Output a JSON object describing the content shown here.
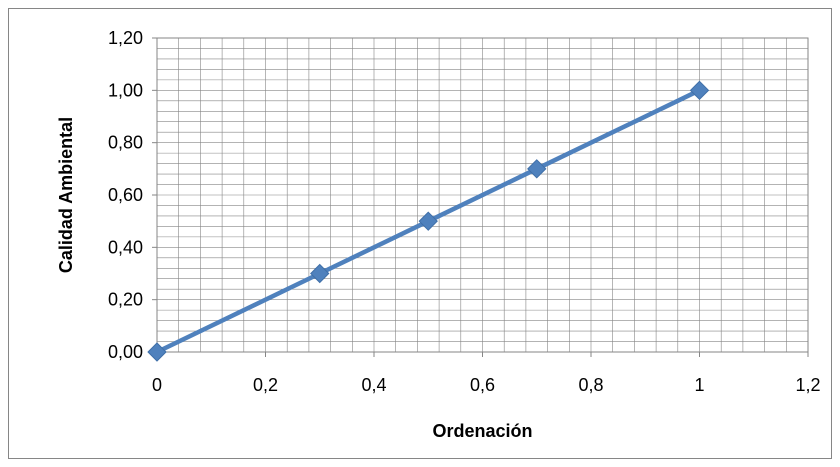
{
  "chart_data": {
    "type": "scatter",
    "mode": "lines+markers",
    "xlabel": "Ordenación",
    "ylabel": "Calidad Ambiental",
    "xlim": [
      0,
      1.2
    ],
    "ylim": [
      0,
      1.2
    ],
    "x_ticks": [
      "0",
      "0,2",
      "0,4",
      "0,6",
      "0,8",
      "1",
      "1,2"
    ],
    "y_ticks": [
      "0,00",
      "0,20",
      "0,40",
      "0,60",
      "0,80",
      "1,00",
      "1,20"
    ],
    "grid": true,
    "legend": "none",
    "series": [
      {
        "x": [
          0,
          0.3,
          0.5,
          0.7,
          1
        ],
        "y": [
          0,
          0.3,
          0.5,
          0.7,
          1
        ]
      }
    ],
    "colors": {
      "series": "#4F81BD",
      "grid": "#868686",
      "border": "#868686"
    }
  }
}
